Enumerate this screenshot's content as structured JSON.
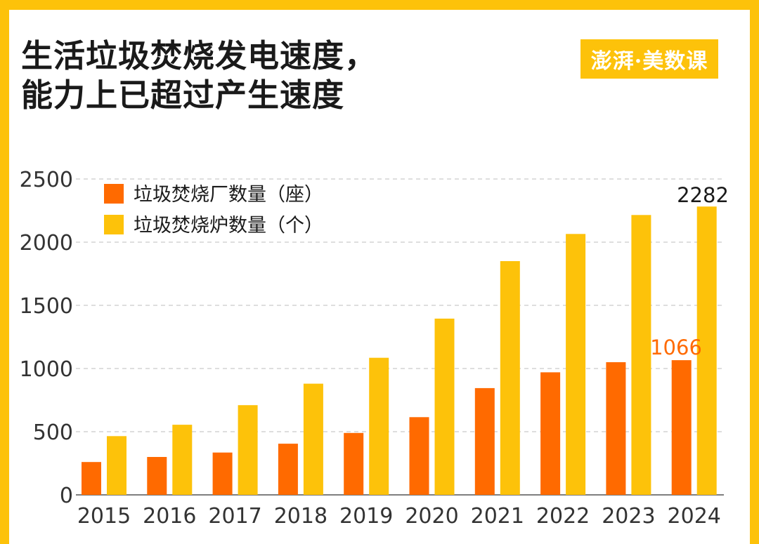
{
  "title_lines": [
    "生活垃圾焚烧发电速度，",
    "能力上已超过产生速度"
  ],
  "brand": "澎湃·美数课",
  "colors": {
    "frame": "#FDC20A",
    "plants": "#FF6A00",
    "furnaces": "#FDC20A",
    "label_plants": "#FF6A00",
    "label_furnaces": "#1A1A1A",
    "grid": "#BDBDBD"
  },
  "chart_data": {
    "type": "bar",
    "categories": [
      "2015",
      "2016",
      "2017",
      "2018",
      "2019",
      "2020",
      "2021",
      "2022",
      "2023",
      "2024"
    ],
    "series": [
      {
        "name": "垃圾焚烧厂数量（座）",
        "values": [
          260,
          300,
          335,
          405,
          490,
          615,
          845,
          970,
          1050,
          1066
        ]
      },
      {
        "name": "垃圾焚烧炉数量（个）",
        "values": [
          465,
          555,
          710,
          880,
          1085,
          1395,
          1850,
          2065,
          2215,
          2282
        ]
      }
    ],
    "data_labels": [
      {
        "series": 0,
        "index": 9,
        "text": "1066"
      },
      {
        "series": 1,
        "index": 9,
        "text": "2282"
      }
    ],
    "yticks": [
      "0",
      "500",
      "1000",
      "1500",
      "2000",
      "2500"
    ],
    "ylim": [
      0,
      2500
    ],
    "grid": true,
    "legend": "top-left"
  }
}
